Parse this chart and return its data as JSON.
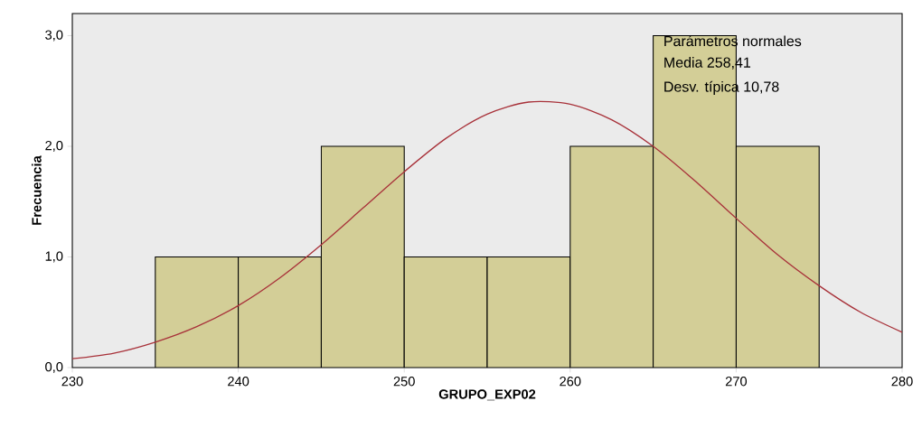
{
  "chart_data": {
    "type": "histogram",
    "xlabel": "GRUPO_EXP02",
    "ylabel": "Frecuencia",
    "bins": [
      235,
      240,
      245,
      250,
      255,
      260,
      265,
      270,
      275
    ],
    "values": [
      1,
      1,
      2,
      1,
      1,
      2,
      3,
      2
    ],
    "color": "#d3ce97",
    "series": [
      {
        "type": "line",
        "color": "#a8323a",
        "x": [
          230,
          232.5,
          235,
          237.5,
          240,
          242.5,
          245,
          247.5,
          250,
          252.5,
          255,
          257.5,
          260,
          262.5,
          265,
          267.5,
          270,
          272.5,
          275,
          277.5,
          280
        ],
        "values": [
          0.08,
          0.13,
          0.23,
          0.37,
          0.56,
          0.81,
          1.11,
          1.44,
          1.77,
          2.07,
          2.29,
          2.4,
          2.38,
          2.24,
          2.0,
          1.69,
          1.35,
          1.02,
          0.74,
          0.5,
          0.32
        ]
      }
    ],
    "xlim": [
      230,
      280
    ],
    "xticks": [
      230,
      240,
      250,
      260,
      270,
      280
    ],
    "ylim": [
      0,
      3.2
    ],
    "yticks": [
      {
        "value": 0,
        "label": "0,0"
      },
      {
        "value": 1,
        "label": "1,0"
      },
      {
        "value": 2,
        "label": "2,0"
      },
      {
        "value": 3,
        "label": "3,0"
      }
    ],
    "annotations": [
      "Parámetros normales",
      "Media 258,41",
      "Desv. típica 10,78"
    ]
  }
}
